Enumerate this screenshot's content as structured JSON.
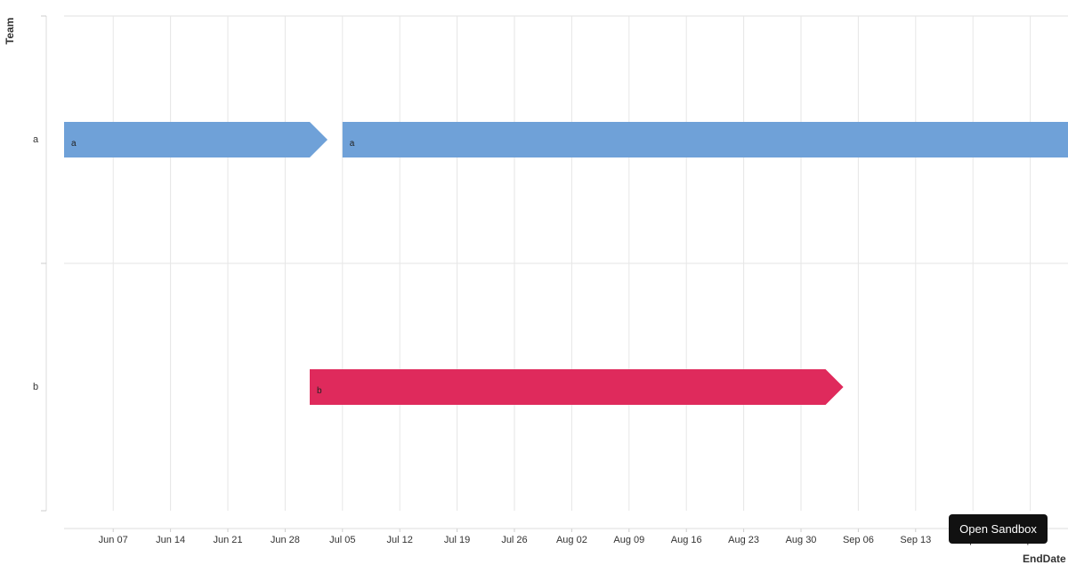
{
  "chart_data": {
    "type": "gantt",
    "ylabel": "Team",
    "xlabel": "EndDate",
    "categories": [
      "a",
      "b"
    ],
    "x_ticks": [
      "Jun 07",
      "Jun 14",
      "Jun 21",
      "Jun 28",
      "Jul 05",
      "Jul 12",
      "Jul 19",
      "Jul 26",
      "Aug 02",
      "Aug 09",
      "Aug 16",
      "Aug 23",
      "Aug 30",
      "Sep 06",
      "Sep 13",
      "Sep 20",
      "Sep 27"
    ],
    "xlim": [
      "2021-06-01",
      "2021-10-03"
    ],
    "grid": true,
    "tasks": [
      {
        "team": "a",
        "label": "a",
        "start": "2021-06-01",
        "end": "2021-07-01",
        "color": "#6fa1d8",
        "arrow": true
      },
      {
        "team": "a",
        "label": "a",
        "start": "2021-07-05",
        "end": "2021-10-03",
        "color": "#6fa1d8",
        "arrow": false
      },
      {
        "team": "b",
        "label": "b",
        "start": "2021-07-01",
        "end": "2021-09-02",
        "color": "#df2a5c",
        "arrow": true
      }
    ]
  },
  "ui": {
    "sandbox_button": "Open Sandbox"
  }
}
